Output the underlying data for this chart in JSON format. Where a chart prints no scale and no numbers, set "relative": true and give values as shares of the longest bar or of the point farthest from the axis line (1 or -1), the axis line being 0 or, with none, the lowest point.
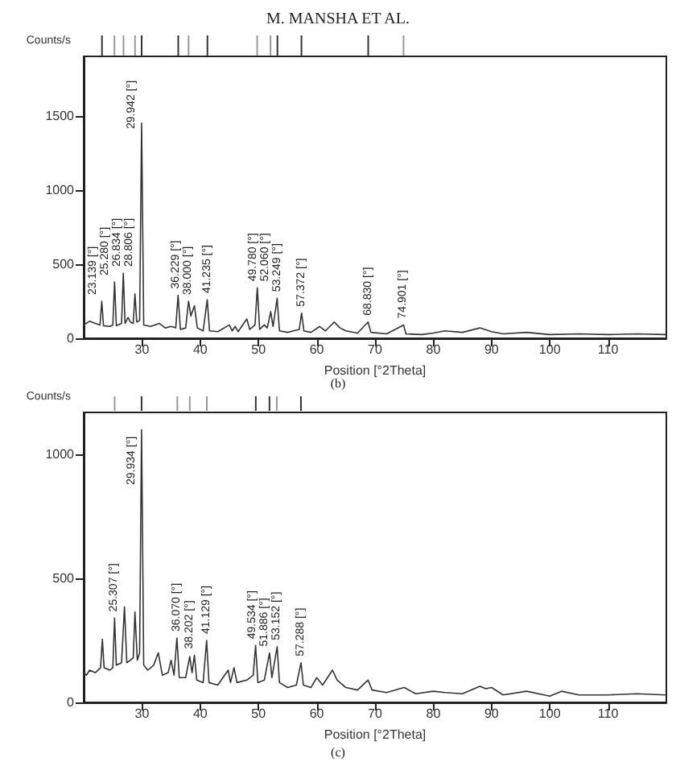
{
  "chart_data": [
    {
      "type": "bar",
      "title": "M. MANSHA ET AL.",
      "relative": true,
      "tick_labels": false,
      "xlim": [
        20,
        120
      ],
      "x": [
        23.139,
        25.28,
        26.834,
        28.806,
        29.942,
        36.229,
        38.0,
        41.235,
        49.78,
        52.06,
        53.249,
        57.372,
        68.83,
        74.901
      ],
      "values": [
        1,
        1,
        1,
        1,
        1,
        1,
        1,
        1,
        1,
        1,
        1,
        1,
        1,
        1
      ],
      "colors": [
        "#333333",
        "#999999",
        "#999999",
        "#999999",
        "#333333",
        "#333333",
        "#999999",
        "#333333",
        "#999999",
        "#999999",
        "#333333",
        "#333333",
        "#333333",
        "#999999"
      ]
    },
    {
      "type": "line",
      "xlabel": "Position [°2Theta]",
      "ylabel": "Counts/s",
      "color": "#333333",
      "line_style": "solid",
      "grid": false,
      "xlim": [
        20,
        120
      ],
      "xticks": [
        30,
        40,
        50,
        60,
        70,
        80,
        90,
        100,
        110
      ],
      "ylim": [
        0,
        1900
      ],
      "yticks": [
        0,
        500,
        1000,
        1500
      ],
      "x": [
        20,
        21,
        22,
        22.8,
        23.1,
        23.4,
        24.5,
        25.0,
        25.3,
        25.6,
        26.5,
        26.8,
        27.1,
        27.6,
        28.0,
        28.5,
        28.8,
        29.1,
        29.6,
        29.94,
        30.3,
        31.5,
        33,
        34,
        35.0,
        35.8,
        36.2,
        36.6,
        37.5,
        38.0,
        38.4,
        39.0,
        39.5,
        40.5,
        41.2,
        41.6,
        43,
        45,
        45.5,
        46,
        46.5,
        48,
        48.5,
        49.4,
        49.8,
        50.2,
        51,
        51.5,
        52.1,
        52.5,
        53.2,
        53.6,
        55,
        56,
        57.0,
        57.4,
        57.8,
        59,
        60.5,
        61.5,
        63,
        64,
        65,
        67,
        68.8,
        69.3,
        72,
        74.9,
        75.3,
        78,
        80,
        82,
        85,
        88,
        90,
        92,
        96,
        100,
        105,
        110,
        115,
        119.8
      ],
      "values": [
        90,
        115,
        100,
        90,
        250,
        85,
        80,
        90,
        380,
        85,
        100,
        440,
        100,
        140,
        110,
        100,
        300,
        110,
        120,
        1450,
        90,
        80,
        100,
        70,
        80,
        70,
        290,
        60,
        70,
        250,
        150,
        220,
        70,
        50,
        260,
        50,
        45,
        90,
        50,
        80,
        45,
        130,
        60,
        90,
        340,
        60,
        90,
        70,
        180,
        80,
        270,
        50,
        40,
        50,
        60,
        170,
        50,
        40,
        80,
        50,
        110,
        70,
        50,
        35,
        110,
        40,
        30,
        90,
        30,
        25,
        35,
        50,
        40,
        70,
        45,
        30,
        40,
        25,
        30,
        25,
        30,
        25
      ],
      "annotations": [
        {
          "text": "23.139 [°]",
          "x": 23.139,
          "y": 250
        },
        {
          "text": "25.280 [°]",
          "x": 25.28,
          "y": 380
        },
        {
          "text": "26.834 [°]",
          "x": 26.834,
          "y": 440
        },
        {
          "text": "28.806 [°]",
          "x": 28.806,
          "y": 300
        },
        {
          "text": "29.942 [°]",
          "x": 29.942,
          "y": 1450
        },
        {
          "text": "36.229 [°]",
          "x": 36.229,
          "y": 290
        },
        {
          "text": "38.000 [°]",
          "x": 38.0,
          "y": 250
        },
        {
          "text": "41.235 [°]",
          "x": 41.235,
          "y": 260
        },
        {
          "text": "49.780 [°]",
          "x": 49.78,
          "y": 340
        },
        {
          "text": "52.060 [°]",
          "x": 52.06,
          "y": 180
        },
        {
          "text": "53.249 [°]",
          "x": 53.249,
          "y": 270
        },
        {
          "text": "57.372 [°]",
          "x": 57.372,
          "y": 170
        },
        {
          "text": "68.830 [°]",
          "x": 68.83,
          "y": 110
        },
        {
          "text": "74.901 [°]",
          "x": 74.901,
          "y": 90
        },
        "(b)"
      ]
    },
    {
      "type": "bar",
      "relative": true,
      "tick_labels": false,
      "xlim": [
        20,
        120
      ],
      "x": [
        25.307,
        29.934,
        36.07,
        38.202,
        41.129,
        49.534,
        51.886,
        53.152,
        57.288
      ],
      "values": [
        1,
        1,
        1,
        1,
        1,
        1,
        1,
        1,
        1
      ],
      "colors": [
        "#999999",
        "#333333",
        "#999999",
        "#999999",
        "#999999",
        "#333333",
        "#333333",
        "#999999",
        "#333333"
      ]
    },
    {
      "type": "line",
      "xlabel": "Position [°2Theta]",
      "ylabel": "Counts/s",
      "color": "#333333",
      "line_style": "solid",
      "grid": false,
      "xlim": [
        20,
        120
      ],
      "xticks": [
        30,
        40,
        50,
        60,
        70,
        80,
        90,
        100,
        110
      ],
      "ylim": [
        0,
        1170
      ],
      "yticks": [
        0,
        500,
        1000
      ],
      "x": [
        20,
        20.5,
        21,
        22,
        22.9,
        23.2,
        23.5,
        24.5,
        25.0,
        25.3,
        25.6,
        26.5,
        27.0,
        27.4,
        28.0,
        28.5,
        28.8,
        29.2,
        29.6,
        29.93,
        30.3,
        31,
        32,
        32.8,
        33.5,
        34.5,
        35.0,
        35.5,
        36.0,
        36.4,
        37.5,
        38.2,
        38.6,
        39.0,
        39.4,
        40.5,
        41.1,
        41.5,
        43,
        44.8,
        45.2,
        45.8,
        46.3,
        48,
        49.1,
        49.5,
        49.9,
        51,
        51.9,
        52.3,
        53.2,
        53.6,
        55,
        56.5,
        57.3,
        57.7,
        59,
        60,
        61,
        62.7,
        63.5,
        65,
        67,
        68.8,
        69.5,
        72,
        75,
        77,
        80,
        82,
        85,
        88,
        89,
        90,
        92,
        96,
        100,
        102,
        105,
        110,
        115,
        119.8
      ],
      "values": [
        120,
        110,
        130,
        120,
        140,
        255,
        140,
        130,
        140,
        340,
        150,
        160,
        385,
        160,
        170,
        180,
        365,
        170,
        200,
        1100,
        150,
        130,
        150,
        200,
        110,
        120,
        170,
        110,
        260,
        100,
        100,
        185,
        120,
        190,
        90,
        80,
        250,
        80,
        70,
        130,
        80,
        140,
        80,
        90,
        110,
        230,
        80,
        90,
        200,
        100,
        225,
        80,
        60,
        70,
        160,
        70,
        60,
        100,
        70,
        130,
        90,
        60,
        50,
        90,
        50,
        40,
        60,
        35,
        45,
        40,
        35,
        65,
        55,
        60,
        30,
        45,
        25,
        45,
        30,
        30,
        35,
        30
      ],
      "annotations": [
        {
          "text": "25.307 [°]",
          "x": 25.307,
          "y": 340
        },
        {
          "text": "29.934 [°]",
          "x": 29.934,
          "y": 1100
        },
        {
          "text": "36.070 [°]",
          "x": 36.07,
          "y": 260
        },
        {
          "text": "38.202 [°]",
          "x": 38.202,
          "y": 185
        },
        {
          "text": "41.129 [°]",
          "x": 41.129,
          "y": 250
        },
        {
          "text": "49.534 [°]",
          "x": 49.534,
          "y": 230
        },
        {
          "text": "51.886 [°]",
          "x": 51.886,
          "y": 200
        },
        {
          "text": "53.152 [°]",
          "x": 53.152,
          "y": 225
        },
        {
          "text": "57.288 [°]",
          "x": 57.288,
          "y": 160
        },
        "(c)"
      ]
    }
  ]
}
